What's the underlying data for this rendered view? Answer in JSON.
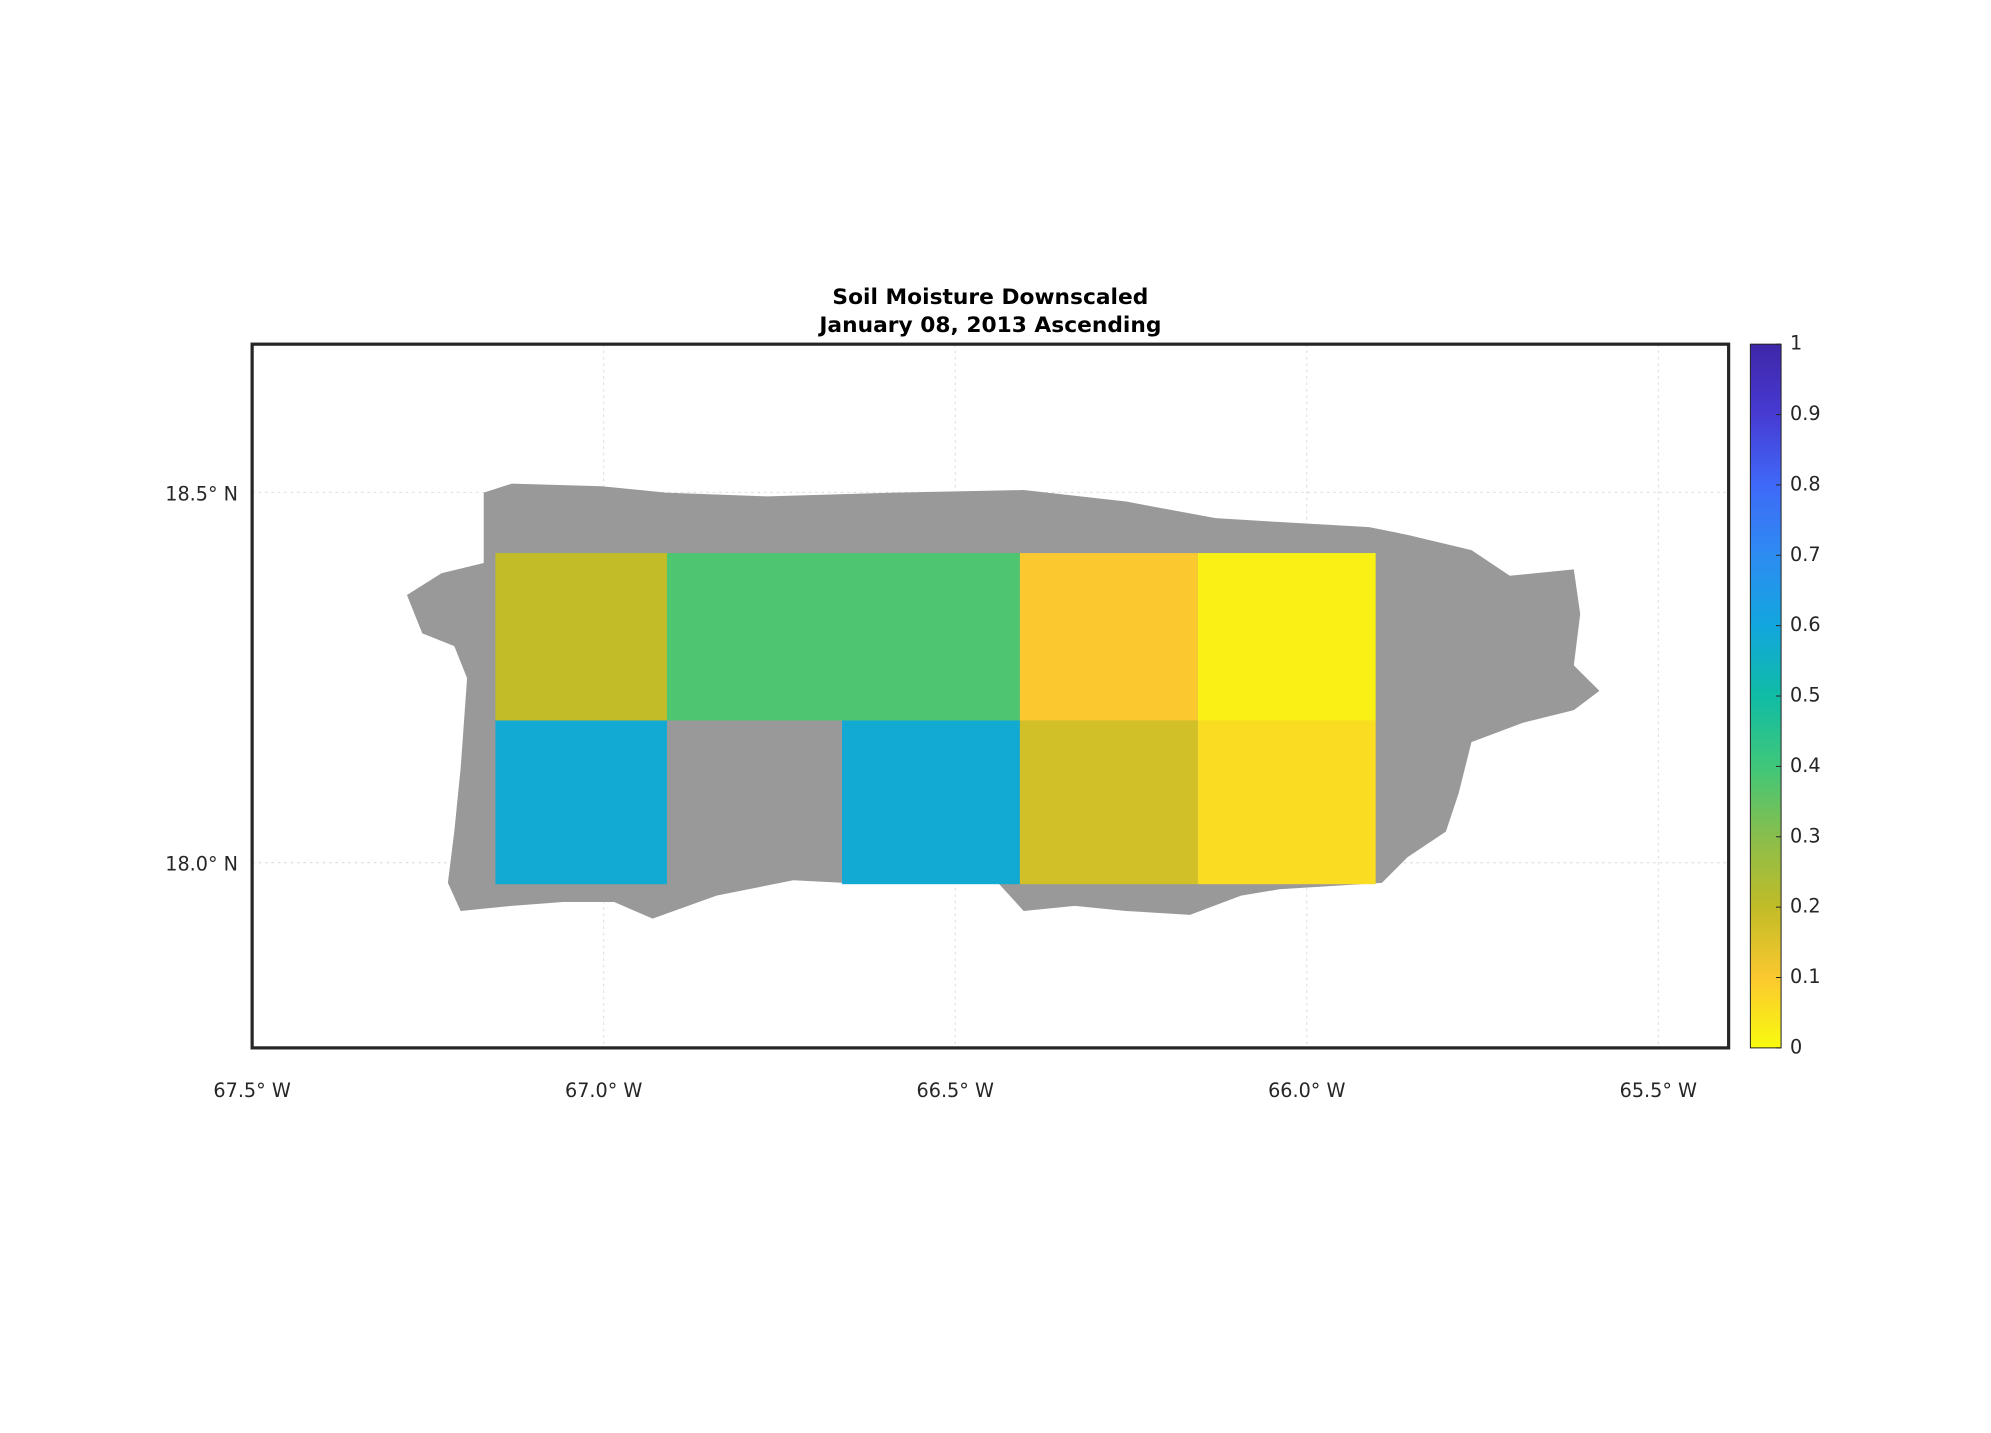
{
  "chart_data": {
    "type": "map",
    "title": "Soil Moisture Downscaled",
    "subtitle": "January 08, 2013 Ascending",
    "xlim": [
      -67.5,
      -65.4
    ],
    "ylim": [
      17.75,
      18.7
    ],
    "xticks": [
      {
        "value": -67.5,
        "label": "67.5° W"
      },
      {
        "value": -67.0,
        "label": "67.0° W"
      },
      {
        "value": -66.5,
        "label": "66.5° W"
      },
      {
        "value": -66.0,
        "label": "66.0° W"
      },
      {
        "value": -65.5,
        "label": "65.5° W"
      }
    ],
    "yticks": [
      {
        "value": 18.0,
        "label": "18.0° N"
      },
      {
        "value": 18.5,
        "label": "18.5° N"
      }
    ],
    "grid": true,
    "land_color": "#999999",
    "colorbar": {
      "lim": [
        0,
        1
      ],
      "ticks": [
        0,
        0.1,
        0.2,
        0.3,
        0.4,
        0.5,
        0.6,
        0.7,
        0.8,
        0.9,
        1
      ],
      "colormap": [
        "#f9fb0e",
        "#fbc82f",
        "#c1bc27",
        "#89be4c",
        "#3fc77a",
        "#10bca5",
        "#12a6de",
        "#2d8cf2",
        "#3f69f8",
        "#473bd3",
        "#3e26a8"
      ]
    },
    "tiles": [
      {
        "lon": [
          -67.154,
          -66.91
        ],
        "lat": [
          18.192,
          18.418
        ],
        "value": 0.2
      },
      {
        "lon": [
          -66.91,
          -66.408
        ],
        "lat": [
          18.192,
          18.418
        ],
        "value": 0.38
      },
      {
        "lon": [
          -66.408,
          -66.155
        ],
        "lat": [
          18.192,
          18.418
        ],
        "value": 0.1
      },
      {
        "lon": [
          -66.155,
          -65.902
        ],
        "lat": [
          18.192,
          18.418
        ],
        "value": 0.02
      },
      {
        "lon": [
          -67.154,
          -66.91
        ],
        "lat": [
          17.971,
          18.192
        ],
        "value": 0.58
      },
      {
        "lon": [
          -66.661,
          -66.408
        ],
        "lat": [
          17.971,
          18.192
        ],
        "value": 0.58
      },
      {
        "lon": [
          -66.408,
          -66.155
        ],
        "lat": [
          17.971,
          18.192
        ],
        "value": 0.17
      },
      {
        "lon": [
          -66.155,
          -65.902
        ],
        "lat": [
          17.971,
          18.192
        ],
        "value": 0.06
      }
    ]
  }
}
